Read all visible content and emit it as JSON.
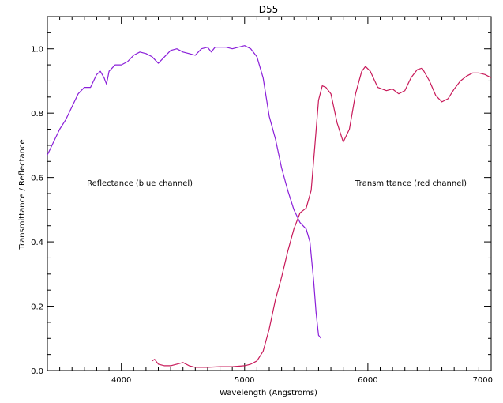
{
  "chart_data": {
    "type": "line",
    "title": "D55",
    "xlabel": "Wavelength (Angstroms)",
    "ylabel": "Transmittance / Reflectance",
    "xlim": [
      3400,
      7000
    ],
    "ylim": [
      0,
      1.1
    ],
    "x_ticks": [
      4000,
      5000,
      6000,
      7000
    ],
    "x_tick_labels": [
      "4000",
      "5000",
      "6000",
      "7000"
    ],
    "y_ticks": [
      0,
      0.2,
      0.4,
      0.6,
      0.8,
      1.0
    ],
    "y_tick_labels": [
      "0.0",
      "0.2",
      "0.4",
      "0.6",
      "0.8",
      "1.0"
    ],
    "grid": false,
    "annotations": [
      {
        "text": "Reflectance (blue channel)",
        "x": 4150,
        "y": 0.575
      },
      {
        "text": "Transmittance (red channel)",
        "x": 6350,
        "y": 0.575
      }
    ],
    "series": [
      {
        "color": "#8a1fd9",
        "x": [
          3400,
          3450,
          3500,
          3550,
          3600,
          3650,
          3700,
          3750,
          3800,
          3830,
          3860,
          3880,
          3900,
          3950,
          4000,
          4050,
          4100,
          4150,
          4200,
          4250,
          4300,
          4350,
          4400,
          4450,
          4500,
          4550,
          4600,
          4650,
          4700,
          4730,
          4760,
          4800,
          4850,
          4900,
          4950,
          5000,
          5050,
          5100,
          5150,
          5200,
          5250,
          5300,
          5350,
          5400,
          5450,
          5500,
          5530,
          5560,
          5580,
          5600,
          5620
        ],
        "y": [
          0.67,
          0.71,
          0.75,
          0.78,
          0.82,
          0.86,
          0.88,
          0.88,
          0.92,
          0.93,
          0.91,
          0.89,
          0.93,
          0.95,
          0.95,
          0.96,
          0.98,
          0.99,
          0.985,
          0.975,
          0.955,
          0.975,
          0.995,
          1.0,
          0.99,
          0.985,
          0.98,
          1.0,
          1.005,
          0.99,
          1.005,
          1.005,
          1.005,
          1.0,
          1.005,
          1.01,
          1.0,
          0.975,
          0.91,
          0.79,
          0.72,
          0.63,
          0.56,
          0.5,
          0.46,
          0.44,
          0.4,
          0.28,
          0.18,
          0.11,
          0.1
        ]
      },
      {
        "color": "#c81a5a",
        "x": [
          4250,
          4270,
          4300,
          4350,
          4400,
          4450,
          4500,
          4550,
          4600,
          4700,
          4800,
          4900,
          5000,
          5050,
          5100,
          5150,
          5200,
          5250,
          5300,
          5350,
          5400,
          5450,
          5500,
          5540,
          5570,
          5600,
          5630,
          5660,
          5700,
          5750,
          5800,
          5850,
          5900,
          5950,
          5980,
          6020,
          6080,
          6150,
          6200,
          6250,
          6300,
          6350,
          6400,
          6440,
          6500,
          6550,
          6600,
          6650,
          6700,
          6750,
          6800,
          6850,
          6900,
          6950,
          7000
        ],
        "y": [
          0.03,
          0.035,
          0.02,
          0.015,
          0.015,
          0.02,
          0.025,
          0.015,
          0.01,
          0.01,
          0.012,
          0.012,
          0.015,
          0.02,
          0.03,
          0.06,
          0.13,
          0.22,
          0.29,
          0.37,
          0.44,
          0.49,
          0.505,
          0.56,
          0.7,
          0.84,
          0.885,
          0.88,
          0.86,
          0.77,
          0.71,
          0.75,
          0.86,
          0.93,
          0.945,
          0.93,
          0.88,
          0.87,
          0.875,
          0.86,
          0.87,
          0.91,
          0.935,
          0.94,
          0.9,
          0.855,
          0.835,
          0.845,
          0.875,
          0.9,
          0.915,
          0.925,
          0.925,
          0.92,
          0.91
        ]
      }
    ]
  }
}
